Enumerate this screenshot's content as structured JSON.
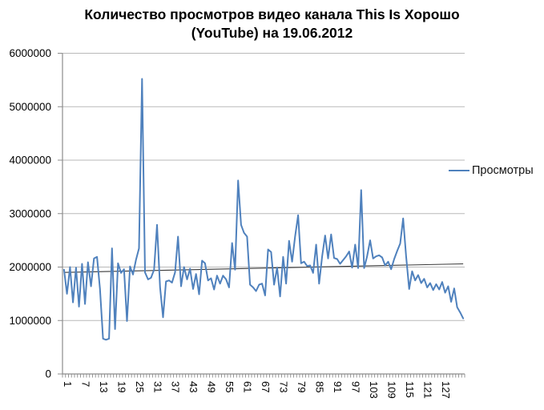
{
  "title": {
    "line1": "Количество просмотров видео канала This Is Хорошо",
    "line2": "(YouTube) на 19.06.2012"
  },
  "legend": {
    "label": "Просмотры",
    "marker_color": "#4F81BD",
    "position": "right"
  },
  "colors": {
    "series_line": "#4F81BD",
    "trendline": "#3a3a3a",
    "gridline": "#b9b9b9",
    "axis": "#8c8c8c",
    "text": "#000000",
    "background": "#ffffff"
  },
  "chart_data": {
    "type": "line",
    "title": "Количество просмотров видео канала This Is Хорошо (YouTube) на 19.06.2012",
    "xlabel": "",
    "ylabel": "",
    "x_range": [
      1,
      134
    ],
    "ylim": [
      0,
      6000000
    ],
    "grid": true,
    "legend_position": "right",
    "y_ticks": [
      0,
      1000000,
      2000000,
      3000000,
      4000000,
      5000000,
      6000000
    ],
    "y_tick_labels": [
      "0",
      "1000000",
      "2000000",
      "3000000",
      "4000000",
      "5000000",
      "6000000"
    ],
    "x_tick_labels": [
      "1",
      "7",
      "13",
      "19",
      "25",
      "31",
      "37",
      "43",
      "49",
      "55",
      "61",
      "67",
      "73",
      "79",
      "85",
      "91",
      "97",
      "103",
      "109",
      "115",
      "121",
      "127"
    ],
    "x_label_interval": 6,
    "series": [
      {
        "name": "Просмотры",
        "color": "#4F81BD",
        "values": [
          1950000,
          1500000,
          2000000,
          1340000,
          1990000,
          1260000,
          2060000,
          1310000,
          2090000,
          1640000,
          2160000,
          2190000,
          1590000,
          660000,
          640000,
          660000,
          2350000,
          840000,
          2070000,
          1890000,
          1960000,
          990000,
          2010000,
          1860000,
          2140000,
          2350000,
          5520000,
          1900000,
          1770000,
          1800000,
          1950000,
          2790000,
          1620000,
          1060000,
          1730000,
          1750000,
          1710000,
          1900000,
          2570000,
          1640000,
          2000000,
          1770000,
          1970000,
          1590000,
          1870000,
          1490000,
          2120000,
          2070000,
          1750000,
          1790000,
          1580000,
          1840000,
          1690000,
          1840000,
          1770000,
          1620000,
          2450000,
          1950000,
          3620000,
          2790000,
          2640000,
          2570000,
          1670000,
          1620000,
          1550000,
          1670000,
          1690000,
          1470000,
          2330000,
          2280000,
          1670000,
          1990000,
          1450000,
          2190000,
          1690000,
          2490000,
          2100000,
          2570000,
          2970000,
          2070000,
          2100000,
          2020000,
          2030000,
          1890000,
          2420000,
          1690000,
          2200000,
          2590000,
          2160000,
          2610000,
          2170000,
          2150000,
          2060000,
          2130000,
          2200000,
          2290000,
          1990000,
          2420000,
          1980000,
          3440000,
          1980000,
          2200000,
          2500000,
          2160000,
          2200000,
          2220000,
          2180000,
          2030000,
          2100000,
          1960000,
          2150000,
          2300000,
          2440000,
          2910000,
          2200000,
          1590000,
          1920000,
          1750000,
          1850000,
          1700000,
          1780000,
          1620000,
          1700000,
          1570000,
          1680000,
          1580000,
          1720000,
          1520000,
          1640000,
          1350000,
          1600000,
          1250000,
          1150000,
          1040000
        ]
      }
    ],
    "trendline": {
      "type": "linear",
      "start_value": 1900000,
      "end_value": 2060000
    }
  }
}
